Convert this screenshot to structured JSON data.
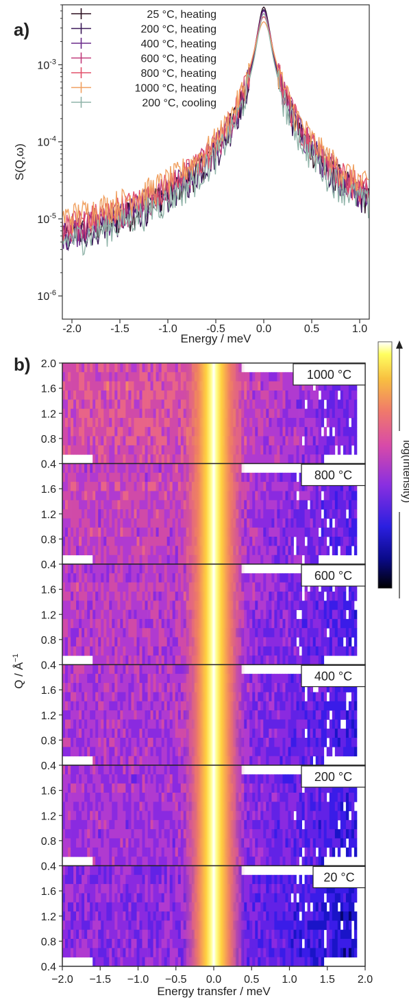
{
  "panel_a_label": "a)",
  "panel_b_label": "b)",
  "chart_data": [
    {
      "type": "line",
      "xlabel": "Energy / meV",
      "ylabel": "S(Q,ω)",
      "xlim": [
        -2.1,
        1.1
      ],
      "ylim": [
        5e-07,
        0.006
      ],
      "yscale": "log",
      "xticks": [
        "-2.0",
        "-1.5",
        "-1.0",
        "-0.5",
        "0.0",
        "0.5",
        "1.0"
      ],
      "yticks": [
        {
          "base": "10",
          "exp": "-3"
        },
        {
          "base": "10",
          "exp": "-4"
        },
        {
          "base": "10",
          "exp": "-5"
        },
        {
          "base": "10",
          "exp": "-6"
        }
      ],
      "legend_position": "top-left",
      "series": [
        {
          "name": "25 °C, heating",
          "color": "#2b0f1f",
          "peak": 0.0056,
          "tail_left": 1.2e-06,
          "tail_right": 3.5e-06,
          "hw": 0.06
        },
        {
          "name": "200 °C, heating",
          "color": "#3a1858",
          "peak": 0.0052,
          "tail_left": 1.4e-06,
          "tail_right": 3.8e-06,
          "hw": 0.06
        },
        {
          "name": "400 °C, heating",
          "color": "#6a2a8a",
          "peak": 0.005,
          "tail_left": 2e-06,
          "tail_right": 4e-06,
          "hw": 0.065
        },
        {
          "name": "600 °C, heating",
          "color": "#c03a7a",
          "peak": 0.0046,
          "tail_left": 2.6e-06,
          "tail_right": 4.5e-06,
          "hw": 0.07
        },
        {
          "name": "800 °C, heating",
          "color": "#e2506a",
          "peak": 0.0042,
          "tail_left": 3e-06,
          "tail_right": 5e-06,
          "hw": 0.075
        },
        {
          "name": "1000 °C, heating",
          "color": "#f0a060",
          "peak": 0.0036,
          "tail_left": 4.5e-06,
          "tail_right": 8e-06,
          "hw": 0.085
        },
        {
          "name": "200 °C, cooling",
          "color": "#8fb3a8",
          "peak": 0.0046,
          "tail_left": 1.3e-06,
          "tail_right": 2.8e-06,
          "hw": 0.06
        }
      ]
    },
    {
      "type": "heatmap",
      "xlabel": "Energy transfer / meV",
      "ylabel": "Q / Å",
      "ylabel_sup": "−1",
      "xlim": [
        -2.0,
        2.0
      ],
      "xticks": [
        "−2.0",
        "−1.5",
        "−1.0",
        "−0.5",
        "0.0",
        "0.5",
        "1.0",
        "1.5",
        "2.0"
      ],
      "ylim": [
        0.4,
        2.0
      ],
      "yticks": [
        "2.0",
        "1.6",
        "1.2",
        "0.8",
        "0.4"
      ],
      "colorbar_label": "log(Intensity)",
      "colormap": "plasma-like (black → blue → purple → pink → orange → yellow → white)",
      "panels": [
        {
          "label": "1000 °C",
          "base_level": 0.55
        },
        {
          "label": "800 °C",
          "base_level": 0.5
        },
        {
          "label": "600 °C",
          "base_level": 0.47
        },
        {
          "label": "400 °C",
          "base_level": 0.44
        },
        {
          "label": "200 °C",
          "base_level": 0.42
        },
        {
          "label": "20 °C",
          "base_level": 0.37
        }
      ]
    }
  ]
}
